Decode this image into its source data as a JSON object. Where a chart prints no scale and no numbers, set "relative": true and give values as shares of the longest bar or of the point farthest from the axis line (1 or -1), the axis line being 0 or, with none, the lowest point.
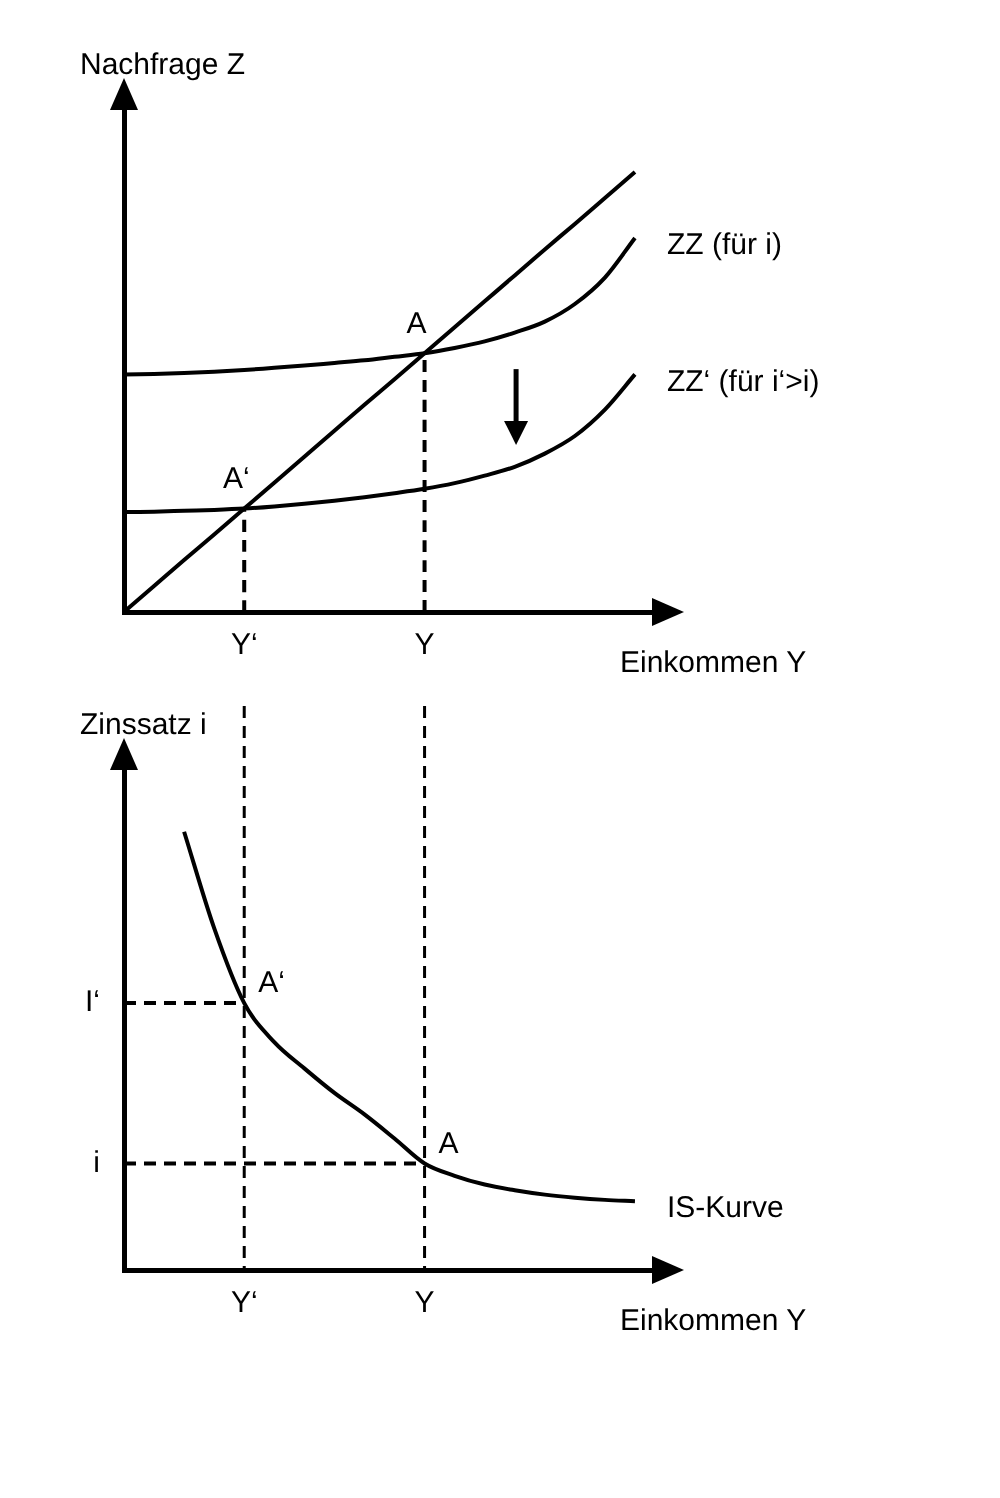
{
  "chart_data": [
    {
      "type": "line",
      "ylabel": "Nachfrage Z",
      "xlabel": "Einkommen Y",
      "relative": true,
      "tick_labels": "x",
      "legend": false,
      "grid": false,
      "marker": "none",
      "categories": [
        null,
        null,
        null,
        null,
        "Y‘",
        null,
        null,
        null,
        null,
        null,
        "Y",
        null,
        null,
        null,
        null,
        null,
        null,
        null
      ],
      "annotations": [
        {
          "text": "A",
          "x": "Y",
          "y": 0.588
        },
        {
          "text": "A‘",
          "x": "Y‘",
          "y": 0.235
        }
      ],
      "series": [
        {
          "color": "#000000",
          "line_style": "solid",
          "values": [
            0,
            0.059,
            0.118,
            0.176,
            0.235,
            0.294,
            0.353,
            0.412,
            0.471,
            0.529,
            0.588,
            0.647,
            0.706,
            0.765,
            0.824,
            0.882,
            0.941,
            1.0
          ]
        },
        {
          "name": "ZZ (für i)",
          "color": "#000000",
          "line_style": "solid",
          "values": [
            0.54,
            0.541,
            0.543,
            0.546,
            0.55,
            0.555,
            0.56,
            0.566,
            0.572,
            0.58,
            0.588,
            0.6,
            0.615,
            0.635,
            0.66,
            0.7,
            0.76,
            0.85
          ]
        },
        {
          "name": "ZZ‘ (für i‘>i)",
          "color": "#000000",
          "line_style": "solid",
          "values": [
            0.227,
            0.228,
            0.23,
            0.232,
            0.235,
            0.24,
            0.246,
            0.253,
            0.261,
            0.27,
            0.28,
            0.293,
            0.31,
            0.33,
            0.36,
            0.4,
            0.46,
            0.54
          ]
        },
        {
          "color": "#000000",
          "line_style": "dashed",
          "x": [
            "Y‘",
            "Y‘"
          ],
          "values": [
            0,
            0.235
          ]
        },
        {
          "color": "#000000",
          "line_style": "dashed",
          "x": [
            "Y",
            "Y"
          ],
          "values": [
            0,
            0.588
          ]
        }
      ]
    },
    {
      "type": "line",
      "ylabel": "Zinssatz i",
      "xlabel": "Einkommen Y",
      "relative": true,
      "tick_labels": "x",
      "legend": false,
      "grid": false,
      "marker": "none",
      "categories": [
        null,
        null,
        null,
        null,
        "Y‘",
        null,
        null,
        null,
        null,
        null,
        "Y",
        null,
        null,
        null,
        null,
        null,
        null,
        null
      ],
      "annotations": [
        {
          "text": "A‘",
          "x": "Y‘",
          "y": 0.609
        },
        {
          "text": "A",
          "x": "Y",
          "y": 0.243
        }
      ],
      "ref_lines": [
        {
          "axis": "x",
          "value": "Y‘",
          "line_style": "dashed"
        },
        {
          "axis": "x",
          "value": "Y",
          "line_style": "dashed"
        }
      ],
      "series": [
        {
          "name": "IS-Kurve",
          "color": "#000000",
          "line_style": "solid",
          "values": [
            null,
            null,
            1.0,
            0.78,
            0.609,
            0.52,
            0.46,
            0.404,
            0.355,
            0.3,
            0.243,
            0.215,
            0.195,
            0.182,
            0.172,
            0.165,
            0.16,
            0.157
          ]
        },
        {
          "name": "I‘",
          "color": "#000000",
          "line_style": "dashed",
          "values": [
            0.609,
            0.609,
            0.609,
            0.609,
            0.609,
            null,
            null,
            null,
            null,
            null,
            null,
            null,
            null,
            null,
            null,
            null,
            null,
            null
          ]
        },
        {
          "name": "i",
          "color": "#000000",
          "line_style": "dashed",
          "values": [
            0.243,
            0.243,
            0.243,
            0.243,
            0.243,
            0.243,
            0.243,
            0.243,
            0.243,
            0.243,
            0.243,
            null,
            null,
            null,
            null,
            null,
            null,
            null
          ]
        }
      ]
    }
  ]
}
